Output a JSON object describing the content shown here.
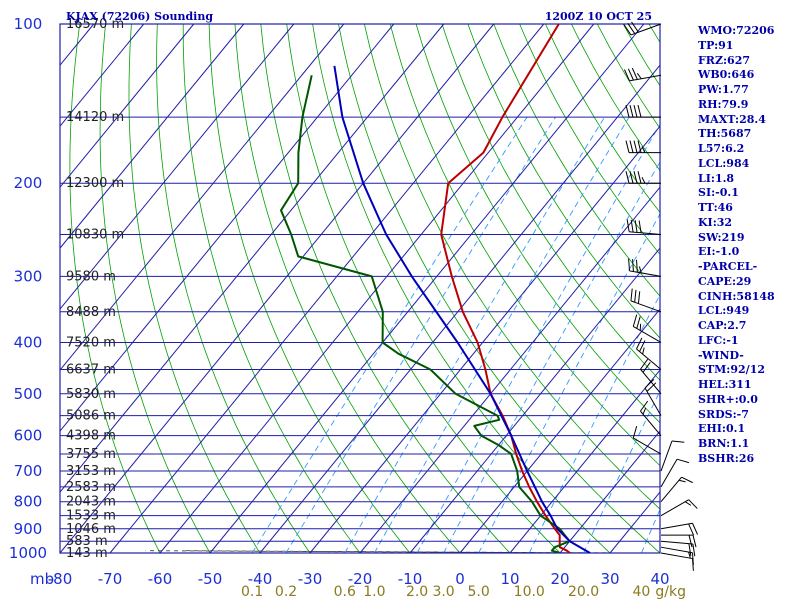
{
  "header": {
    "station": "KJAX (72206) Sounding",
    "time": "1200Z 10 OCT 25"
  },
  "colors": {
    "grid": "#1f1faa",
    "dry_adiabat": "#00a000",
    "moist_adiabat": "#444444",
    "mixing_ratio": "#3399ff",
    "temperature": "#bb0000",
    "dewpoint": "#005500",
    "parcel": "#0000bb",
    "wind": "#000000"
  },
  "indices": [
    "WMO:72206",
    "TP:91",
    "FRZ:627",
    "WB0:646",
    "PW:1.77",
    "RH:79.9",
    "MAXT:28.4",
    "TH:5687",
    "L57:6.2",
    "LCL:984",
    "LI:1.8",
    "SI:-0.1",
    "TT:46",
    "KI:32",
    "SW:219",
    "EI:-1.0",
    "-PARCEL-",
    "CAPE:29",
    "CINH:58148",
    "LCL:949",
    "CAP:2.7",
    "LFC:-1",
    "-WIND-",
    "STM:92/12",
    "HEL:311",
    "SHR+:0.0",
    "SRDS:-7",
    "EHI:0.1",
    "BRN:1.1",
    "BSHR:26"
  ],
  "chart_data": {
    "type": "line",
    "title": "KJAX (72206) Sounding",
    "x_axis": {
      "label": "",
      "unit": "°C",
      "range": [
        -80,
        40
      ],
      "ticks": [
        -80,
        -70,
        -60,
        -50,
        -40,
        -30,
        -20,
        -10,
        0,
        10,
        20,
        30,
        40
      ]
    },
    "y_axis": {
      "label": "mb",
      "scale": "log",
      "range": [
        1000,
        100
      ],
      "ticks": [
        100,
        200,
        300,
        400,
        500,
        600,
        700,
        800,
        900,
        1000
      ]
    },
    "height_labels": [
      {
        "p": 100,
        "text": "16570 m"
      },
      {
        "p": 150,
        "text": "14120 m"
      },
      {
        "p": 200,
        "text": "12300 m"
      },
      {
        "p": 250,
        "text": "10830 m"
      },
      {
        "p": 300,
        "text": "9580 m"
      },
      {
        "p": 350,
        "text": "8488 m"
      },
      {
        "p": 400,
        "text": "7520 m"
      },
      {
        "p": 450,
        "text": "6637 m"
      },
      {
        "p": 500,
        "text": "5830 m"
      },
      {
        "p": 550,
        "text": "5086 m"
      },
      {
        "p": 600,
        "text": "4398 m"
      },
      {
        "p": 650,
        "text": "3755 m"
      },
      {
        "p": 700,
        "text": "3153 m"
      },
      {
        "p": 750,
        "text": "2583 m"
      },
      {
        "p": 800,
        "text": "2043 m"
      },
      {
        "p": 850,
        "text": "1533 m"
      },
      {
        "p": 900,
        "text": "1046 m"
      },
      {
        "p": 950,
        "text": "583 m"
      },
      {
        "p": 1000,
        "text": "143 m"
      }
    ],
    "mixing_ratio_labels": [
      "0.1",
      "0.2",
      "0.6",
      "1.0",
      "2.0",
      "3.0",
      "5.0",
      "10.0",
      "20.0",
      "40",
      "g/kg"
    ],
    "series": [
      {
        "name": "temperature",
        "color": "#bb0000",
        "points": [
          [
            1000,
            22
          ],
          [
            990,
            21
          ],
          [
            975,
            19
          ],
          [
            950,
            18
          ],
          [
            925,
            17
          ],
          [
            900,
            15
          ],
          [
            850,
            11
          ],
          [
            800,
            7
          ],
          [
            750,
            3
          ],
          [
            700,
            -1
          ],
          [
            650,
            -5
          ],
          [
            600,
            -9
          ],
          [
            550,
            -14
          ],
          [
            500,
            -20
          ],
          [
            450,
            -25
          ],
          [
            400,
            -31
          ],
          [
            350,
            -39
          ],
          [
            300,
            -47
          ],
          [
            250,
            -56
          ],
          [
            200,
            -63
          ],
          [
            175,
            -61
          ],
          [
            150,
            -63
          ],
          [
            100,
            -67
          ]
        ]
      },
      {
        "name": "dewpoint",
        "color": "#005500",
        "points": [
          [
            1000,
            20
          ],
          [
            990,
            18
          ],
          [
            975,
            18
          ],
          [
            950,
            20
          ],
          [
            925,
            18
          ],
          [
            900,
            16
          ],
          [
            850,
            10
          ],
          [
            800,
            6
          ],
          [
            750,
            1
          ],
          [
            700,
            -2
          ],
          [
            650,
            -6
          ],
          [
            625,
            -10
          ],
          [
            600,
            -15
          ],
          [
            575,
            -18
          ],
          [
            560,
            -14
          ],
          [
            550,
            -15
          ],
          [
            500,
            -27
          ],
          [
            450,
            -36
          ],
          [
            420,
            -45
          ],
          [
            400,
            -50
          ],
          [
            350,
            -55
          ],
          [
            300,
            -63
          ],
          [
            275,
            -81
          ],
          [
            250,
            -86
          ],
          [
            225,
            -92
          ],
          [
            200,
            -93
          ],
          [
            175,
            -98
          ],
          [
            150,
            -103
          ],
          [
            125,
            -108
          ]
        ]
      },
      {
        "name": "parcel",
        "color": "#0000bb",
        "points": [
          [
            1000,
            26
          ],
          [
            950,
            20
          ],
          [
            900,
            15.5
          ],
          [
            850,
            12
          ],
          [
            800,
            8
          ],
          [
            700,
            0
          ],
          [
            600,
            -9
          ],
          [
            500,
            -20
          ],
          [
            400,
            -35
          ],
          [
            300,
            -55
          ],
          [
            250,
            -67
          ],
          [
            200,
            -80
          ],
          [
            150,
            -95
          ],
          [
            120,
            -105
          ]
        ]
      }
    ],
    "wind_barbs": [
      {
        "p": 1000,
        "dir": 100,
        "spd": 10
      },
      {
        "p": 975,
        "dir": 100,
        "spd": 15
      },
      {
        "p": 950,
        "dir": 95,
        "spd": 20
      },
      {
        "p": 925,
        "dir": 90,
        "spd": 20
      },
      {
        "p": 900,
        "dir": 80,
        "spd": 20
      },
      {
        "p": 850,
        "dir": 60,
        "spd": 15
      },
      {
        "p": 800,
        "dir": 40,
        "spd": 15
      },
      {
        "p": 750,
        "dir": 30,
        "spd": 10
      },
      {
        "p": 700,
        "dir": 20,
        "spd": 10
      },
      {
        "p": 650,
        "dir": 300,
        "spd": 10
      },
      {
        "p": 600,
        "dir": 320,
        "spd": 15
      },
      {
        "p": 550,
        "dir": 330,
        "spd": 20
      },
      {
        "p": 500,
        "dir": 320,
        "spd": 20
      },
      {
        "p": 450,
        "dir": 310,
        "spd": 25
      },
      {
        "p": 400,
        "dir": 300,
        "spd": 25
      },
      {
        "p": 350,
        "dir": 290,
        "spd": 30
      },
      {
        "p": 300,
        "dir": 280,
        "spd": 35
      },
      {
        "p": 250,
        "dir": 275,
        "spd": 40
      },
      {
        "p": 200,
        "dir": 270,
        "spd": 45
      },
      {
        "p": 175,
        "dir": 270,
        "spd": 45
      },
      {
        "p": 150,
        "dir": 270,
        "spd": 40
      },
      {
        "p": 125,
        "dir": 260,
        "spd": 35
      },
      {
        "p": 100,
        "dir": 250,
        "spd": 30
      }
    ]
  }
}
